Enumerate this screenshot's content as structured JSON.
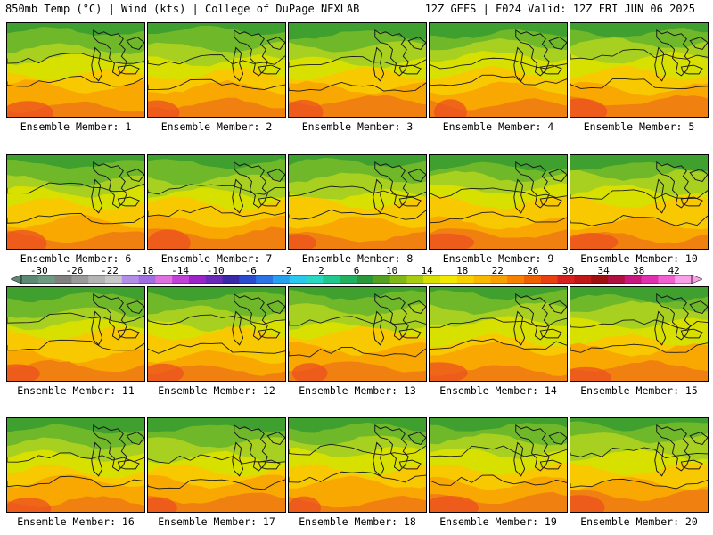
{
  "header": {
    "left": "850mb Temp (°C) | Wind (kts) | College of DuPage NEXLAB",
    "right": "12Z GEFS | F024 Valid: 12Z FRI JUN 06 2025"
  },
  "members": [
    "Ensemble Member: 1",
    "Ensemble Member: 2",
    "Ensemble Member: 3",
    "Ensemble Member: 4",
    "Ensemble Member: 5",
    "Ensemble Member: 6",
    "Ensemble Member: 7",
    "Ensemble Member: 8",
    "Ensemble Member: 9",
    "Ensemble Member: 10",
    "Ensemble Member: 11",
    "Ensemble Member: 12",
    "Ensemble Member: 13",
    "Ensemble Member: 14",
    "Ensemble Member: 15",
    "Ensemble Member: 16",
    "Ensemble Member: 17",
    "Ensemble Member: 18",
    "Ensemble Member: 19",
    "Ensemble Member: 20"
  ],
  "colorbar": {
    "ticks": [
      "-30",
      "-26",
      "-22",
      "-18",
      "-14",
      "-10",
      "-6",
      "-2",
      "2",
      "6",
      "10",
      "14",
      "18",
      "22",
      "26",
      "30",
      "34",
      "38",
      "42"
    ],
    "colors": [
      "#5c8a74",
      "#6f9a82",
      "#808080",
      "#9a9a9a",
      "#b4b4b4",
      "#c8c8c8",
      "#b28ee6",
      "#9f6ee0",
      "#e070e0",
      "#c040d8",
      "#9a24c8",
      "#6a2ab8",
      "#3a2aa8",
      "#2a4ad0",
      "#2a74e8",
      "#28a0f0",
      "#28c8f0",
      "#28d8c0",
      "#20c890",
      "#20b060",
      "#289838",
      "#54a020",
      "#80b818",
      "#a8cc10",
      "#d8e000",
      "#f0e800",
      "#f8d000",
      "#f8b800",
      "#f8a000",
      "#f88000",
      "#f06000",
      "#e84010",
      "#d82020",
      "#c01818",
      "#a01010",
      "#b01040",
      "#c81880",
      "#e030b0",
      "#f060d0",
      "#f8a0e8"
    ],
    "range": [
      -32,
      44
    ]
  },
  "colors": {
    "cold": "#3f9f2f",
    "mid": "#a8d020",
    "warm": "#f8c800",
    "hot": "#ee5020",
    "map_line": "#1a1a1a"
  }
}
